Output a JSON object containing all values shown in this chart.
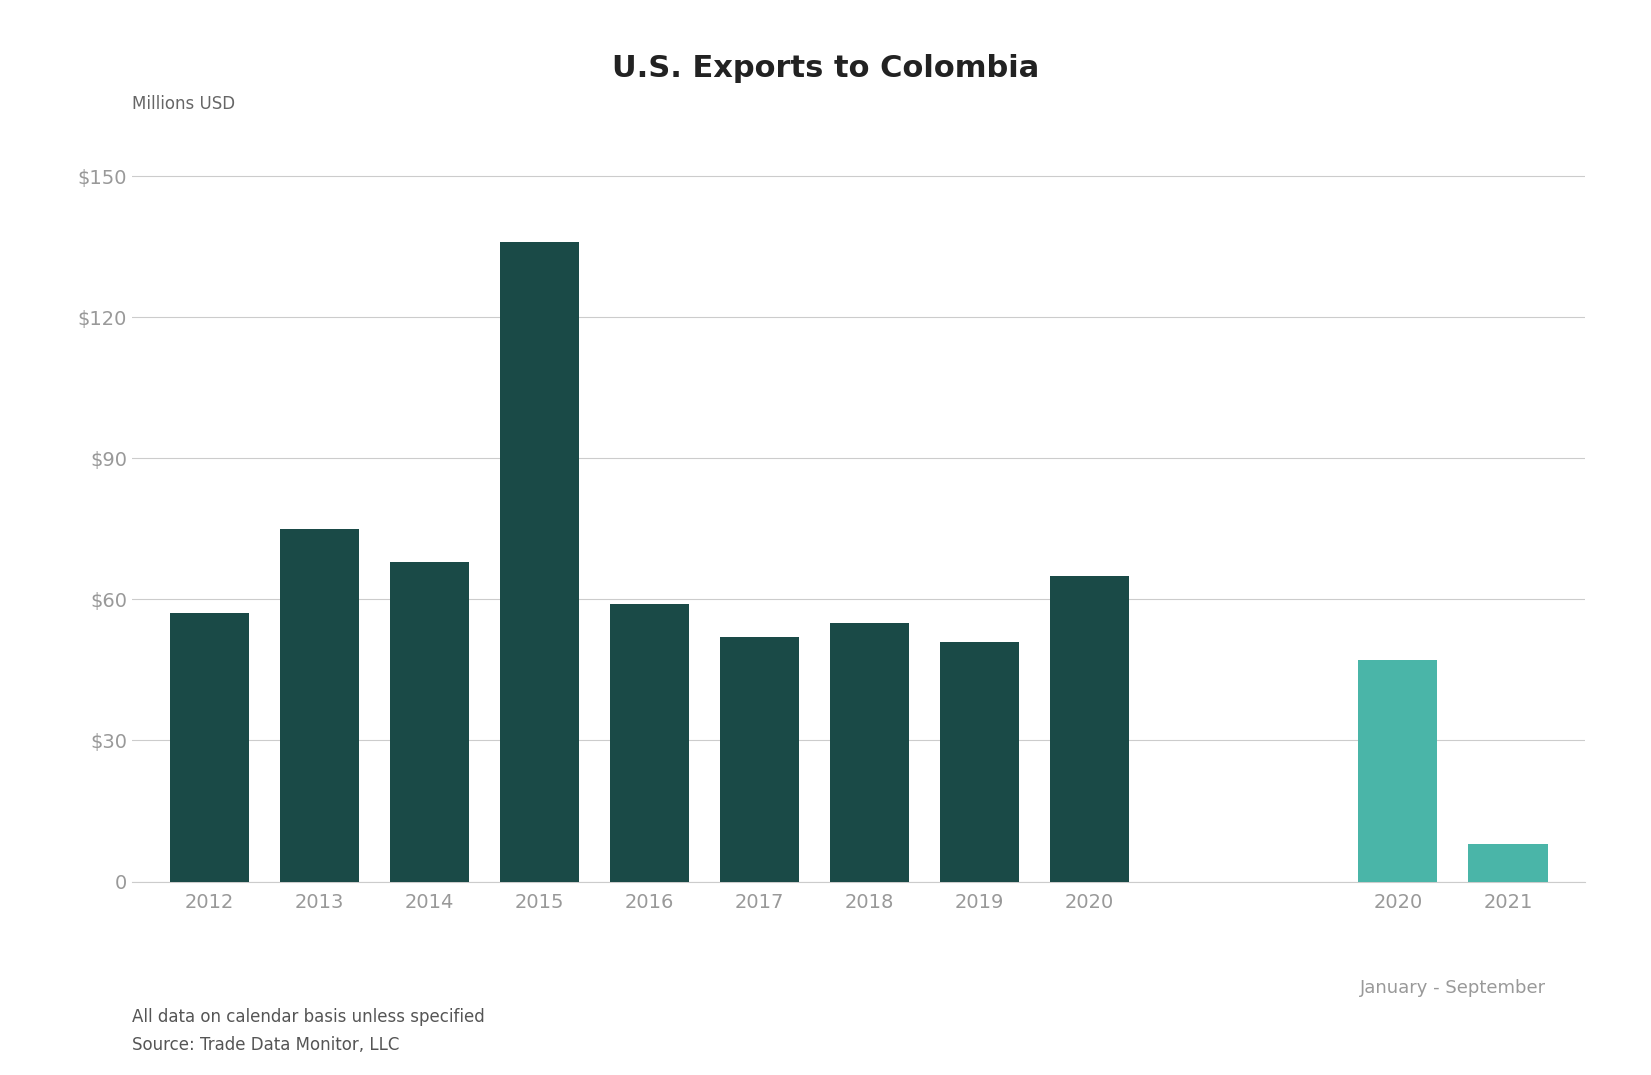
{
  "title": "U.S. Exports to Colombia",
  "ylabel": "Millions USD",
  "categories_annual": [
    "2012",
    "2013",
    "2014",
    "2015",
    "2016",
    "2017",
    "2018",
    "2019",
    "2020"
  ],
  "values_annual": [
    57,
    75,
    68,
    136,
    59,
    52,
    55,
    51,
    65
  ],
  "categories_partial": [
    "2020",
    "2021"
  ],
  "values_partial": [
    47,
    8
  ],
  "color_annual": "#1a4a47",
  "color_partial_2020": "#4ab5a8",
  "color_partial_2021": "#4ab5a8",
  "partial_label": "January - September",
  "ylim": [
    0,
    160
  ],
  "yticks": [
    0,
    30,
    60,
    90,
    120,
    150
  ],
  "ytick_labels": [
    "0",
    "$30",
    "$60",
    "$90",
    "$120",
    "$150"
  ],
  "footnote_line1": "All data on calendar basis unless specified",
  "footnote_line2": "Source: Trade Data Monitor, LLC",
  "background_color": "#ffffff"
}
